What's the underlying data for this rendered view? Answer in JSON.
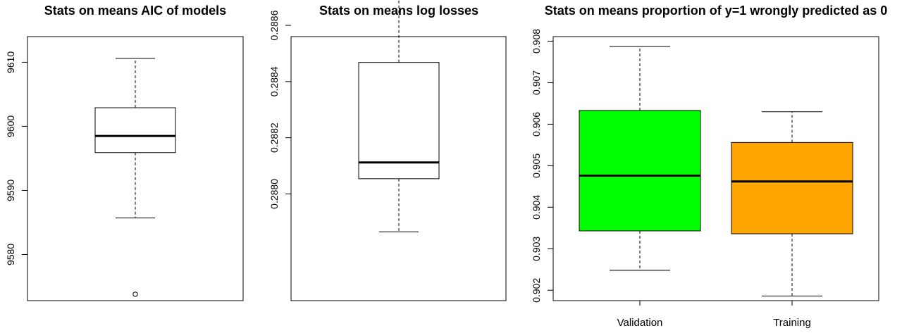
{
  "chart_data": [
    {
      "type": "boxplot",
      "title": "Stats on means AIC of models",
      "xlabel": "",
      "ylabel": "",
      "ylim": [
        9572.8,
        9614.0
      ],
      "yticks": [
        9580,
        9590,
        9600,
        9610
      ],
      "ytick_labels": [
        "9580",
        "9590",
        "9600",
        "9610"
      ],
      "series": [
        {
          "label": "",
          "fill": "#ffffff",
          "min": 9585.7,
          "q1": 9595.9,
          "median": 9598.5,
          "q3": 9602.9,
          "max": 9610.6,
          "outliers": [
            9573.8
          ]
        }
      ]
    },
    {
      "type": "boxplot",
      "title": "Stats on means log losses",
      "xlabel": "",
      "ylabel": "",
      "ylim": [
        0.28762,
        0.28856
      ],
      "yticks": [
        0.288,
        0.2882,
        0.2884,
        0.2886
      ],
      "ytick_labels": [
        "0.2880",
        "0.2882",
        "0.2884",
        "0.2886"
      ],
      "series": [
        {
          "label": "",
          "fill": "#ffffff",
          "min": 0.287865,
          "q1": 0.288054,
          "median": 0.288112,
          "q3": 0.288468,
          "max": 0.288719,
          "outliers": []
        }
      ]
    },
    {
      "type": "boxplot",
      "title": "Stats on means proportion of y=1 wrongly predicted as 0",
      "xlabel": "",
      "ylabel": "",
      "ylim": [
        0.90175,
        0.90811
      ],
      "yticks": [
        0.902,
        0.903,
        0.904,
        0.905,
        0.906,
        0.907,
        0.908
      ],
      "ytick_labels": [
        "0.902",
        "0.903",
        "0.904",
        "0.905",
        "0.906",
        "0.907",
        "0.908"
      ],
      "series": [
        {
          "label": "Validation",
          "fill": "#00ff00",
          "min": 0.90248,
          "q1": 0.90343,
          "median": 0.90476,
          "q3": 0.90633,
          "max": 0.90787,
          "outliers": []
        },
        {
          "label": "Training",
          "fill": "#ffa500",
          "min": 0.90186,
          "q1": 0.90336,
          "median": 0.90462,
          "q3": 0.90556,
          "max": 0.9063,
          "outliers": []
        }
      ]
    }
  ]
}
